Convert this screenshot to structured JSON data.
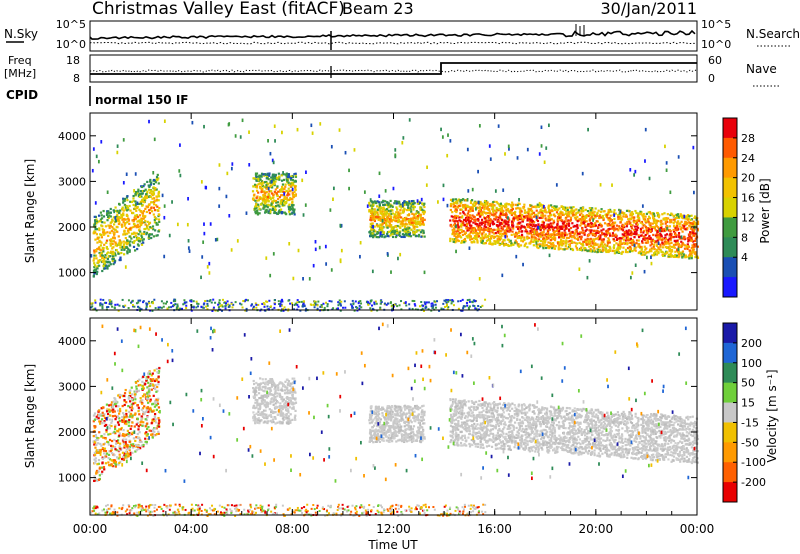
{
  "header": {
    "title": "Christmas Valley East (fitACF)",
    "beam": "Beam 23",
    "date": "30/Jan/2011"
  },
  "noise_panel": {
    "left_label": "N.Sky",
    "right_label": "N.Search",
    "left_ticks": [
      "10^5",
      "10^0"
    ],
    "right_ticks": [
      "10^5",
      "10^0"
    ]
  },
  "freq_panel": {
    "left_label_top": "Freq",
    "left_label_bottom": "[MHz]",
    "right_label": "Nave",
    "left_ticks": [
      "18",
      "8"
    ],
    "right_ticks": [
      "60",
      "0"
    ]
  },
  "cpid": {
    "label": "CPID",
    "value": "normal 150 IF"
  },
  "chart_data": [
    {
      "type": "heatmap",
      "name": "power",
      "ylabel": "Slant Range [km]",
      "ylim": [
        180,
        4500
      ],
      "yticks": [
        1000,
        2000,
        3000,
        4000
      ],
      "xlim_hours": [
        0,
        24
      ],
      "colorbar": {
        "label": "Power [dB]",
        "ticks": [
          "28",
          "24",
          "20",
          "16",
          "12",
          "8",
          "4"
        ],
        "colors": [
          "#e8000b",
          "#ff5a00",
          "#ff9a00",
          "#f2c200",
          "#d8d200",
          "#3f9b3f",
          "#2e8b57",
          "#1a4fb4",
          "#1919ff"
        ]
      },
      "scatter_regions": [
        {
          "time_range": [
            0.1,
            2.7
          ],
          "range_km": [
            1100,
            3000
          ],
          "dominant": "power-mixed"
        },
        {
          "time_range": [
            6.4,
            8.1
          ],
          "range_km": [
            2300,
            3200
          ],
          "dominant": "power-mixed"
        },
        {
          "time_range": [
            11.0,
            13.2
          ],
          "range_km": [
            1800,
            2600
          ],
          "dominant": "power-mixed"
        },
        {
          "time_range": [
            14.2,
            24.0
          ],
          "range_km": [
            1200,
            2700
          ],
          "dominant": "power-high"
        }
      ]
    },
    {
      "type": "heatmap",
      "name": "velocity",
      "ylabel": "Slant Range [km]",
      "ylim": [
        180,
        4500
      ],
      "yticks": [
        1000,
        2000,
        3000,
        4000
      ],
      "xlim_hours": [
        0,
        24
      ],
      "xlabel": "Time UT",
      "xticks": [
        "00:00",
        "04:00",
        "08:00",
        "12:00",
        "16:00",
        "20:00",
        "00:00"
      ],
      "colorbar": {
        "label": "Velocity [m s⁻¹]",
        "ticks": [
          "200",
          "100",
          "50",
          "15",
          "-15",
          "-50",
          "-100",
          "-200"
        ],
        "colors": [
          "#1a1aa8",
          "#1f66d6",
          "#2e8b57",
          "#6fcf3a",
          "#c8c8c8",
          "#f0c000",
          "#ff9a00",
          "#ff6000",
          "#e80000"
        ]
      },
      "scatter_regions": [
        {
          "time_range": [
            0.1,
            2.7
          ],
          "range_km": [
            1100,
            3300
          ],
          "dominant": "velocity-gray-orange"
        },
        {
          "time_range": [
            6.4,
            8.1
          ],
          "range_km": [
            2200,
            3200
          ],
          "dominant": "velocity-gray"
        },
        {
          "time_range": [
            11.0,
            13.2
          ],
          "range_km": [
            1800,
            2600
          ],
          "dominant": "velocity-gray"
        },
        {
          "time_range": [
            14.2,
            24.0
          ],
          "range_km": [
            1200,
            2800
          ],
          "dominant": "velocity-gray"
        }
      ]
    }
  ]
}
